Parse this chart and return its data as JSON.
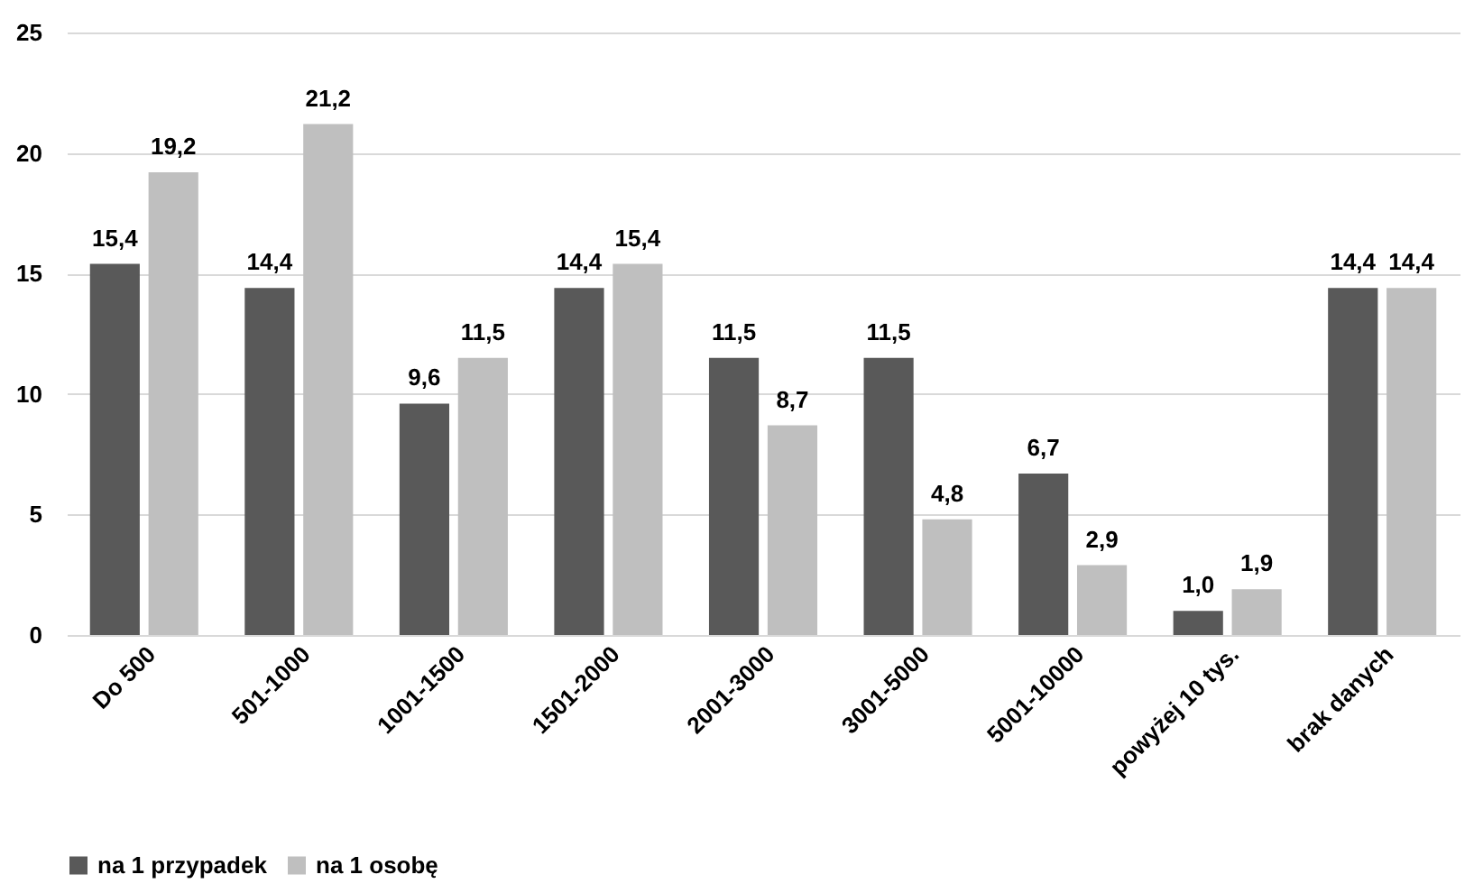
{
  "chart_data": {
    "type": "bar",
    "categories": [
      "Do 500",
      "501-1000",
      "1001-1500",
      "1501-2000",
      "2001-3000",
      "3001-5000",
      "5001-10000",
      "powyżej 10 tys.",
      "brak danych"
    ],
    "series": [
      {
        "name": "na 1 przypadek",
        "color": "#595959",
        "values": [
          15.4,
          14.4,
          9.6,
          14.4,
          11.5,
          11.5,
          6.7,
          1.0,
          14.4
        ],
        "value_labels": [
          "15,4",
          "14,4",
          "9,6",
          "14,4",
          "11,5",
          "11,5",
          "6,7",
          "1,0",
          "14,4"
        ]
      },
      {
        "name": "na 1 osobę",
        "color": "#bfbfbf",
        "values": [
          19.2,
          21.2,
          11.5,
          15.4,
          8.7,
          4.8,
          2.9,
          1.9,
          14.4
        ],
        "value_labels": [
          "19,2",
          "21,2",
          "11,5",
          "15,4",
          "8,7",
          "4,8",
          "2,9",
          "1,9",
          "14,4"
        ]
      }
    ],
    "ylim": [
      0,
      25
    ],
    "yticks": [
      0,
      5,
      10,
      15,
      20,
      25
    ],
    "grid": "y",
    "legend": "bottom"
  }
}
